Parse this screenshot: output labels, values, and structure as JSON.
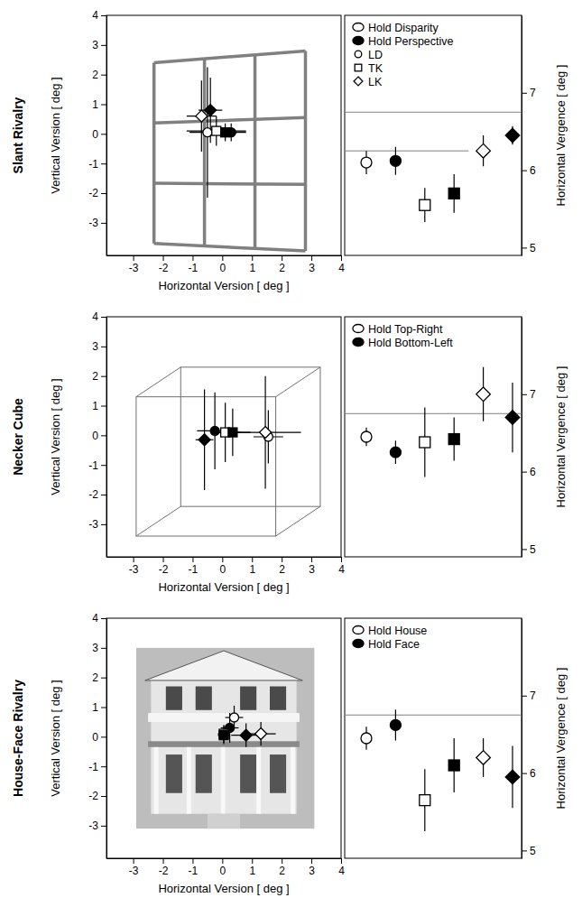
{
  "chart_data": [
    {
      "type": "scatter",
      "title": "Slant Rivalry",
      "xlabel": "Horizontal Version [ deg ]",
      "ylabel": "Vertical Version [ deg ]",
      "xlim": [
        -3.9,
        4
      ],
      "ylim": [
        -4.1,
        4
      ],
      "xticks": [
        -3,
        -2,
        -1,
        0,
        1,
        2,
        3,
        4
      ],
      "yticks": [
        -3,
        -2,
        -1,
        0,
        1,
        2,
        3,
        4
      ],
      "series": [
        {
          "x": [
            -0.5,
            0.3,
            -0.2,
            0.1,
            -0.7,
            -0.4
          ],
          "y": [
            0.05,
            0.05,
            0.1,
            0.05,
            0.6,
            0.8
          ],
          "x_errors": [
            0.6,
            0.5,
            1.0,
            0.4,
            0.5,
            0.4
          ],
          "y_errors": [
            2.2,
            0.3,
            0.5,
            0.3,
            1.2,
            1.1
          ],
          "colors": [
            "#ffffff",
            "#000000",
            "#ffffff",
            "#000000",
            "#ffffff",
            "#000000"
          ],
          "markers": [
            "circle",
            "circle",
            "square",
            "square",
            "diamond",
            "diamond"
          ]
        }
      ]
    },
    {
      "type": "dot",
      "ylabel": "Horizontal Vergence [ deg ]",
      "categories": [
        null,
        null,
        null,
        null,
        null,
        null
      ],
      "ylim": [
        4.9,
        8
      ],
      "yticks": [
        5,
        6,
        7
      ],
      "tick_labels": "y",
      "legend": "top-left",
      "legend_entries": [
        {
          "name": "Hold Disparity",
          "color": "#ffffff",
          "marker": "ellipse"
        },
        {
          "name": "Hold Perspective",
          "color": "#000000",
          "marker": "ellipse"
        },
        {
          "name": "LD",
          "color": "#ffffff",
          "marker": "circle"
        },
        {
          "name": "TK",
          "color": "#ffffff",
          "marker": "square"
        },
        {
          "name": "LK",
          "color": "#ffffff",
          "marker": "diamond"
        }
      ],
      "reference_lines": [
        {
          "y": 6.75
        },
        {
          "y": 6.25,
          "x_end": 3.5
        }
      ],
      "series": [
        {
          "values": [
            6.1,
            6.12,
            5.55,
            5.7,
            6.25,
            6.45
          ],
          "errors": [
            0.15,
            0.18,
            0.22,
            0.25,
            0.2,
            0.12
          ],
          "colors": [
            "#ffffff",
            "#000000",
            "#ffffff",
            "#000000",
            "#ffffff",
            "#000000"
          ],
          "markers": [
            "circle",
            "circle",
            "square",
            "square",
            "diamond",
            "diamond"
          ]
        }
      ]
    },
    {
      "type": "scatter",
      "title": "Necker Cube",
      "xlabel": "Horizontal Version [ deg ]",
      "ylabel": "Vertical Version [ deg ]",
      "xlim": [
        -3.9,
        4
      ],
      "ylim": [
        -4.1,
        4
      ],
      "xticks": [
        -3,
        -2,
        -1,
        0,
        1,
        2,
        3,
        4
      ],
      "yticks": [
        -3,
        -2,
        -1,
        0,
        1,
        2,
        3,
        4
      ],
      "series": [
        {
          "x": [
            1.55,
            -0.25,
            0.1,
            0.35,
            1.45,
            -0.6
          ],
          "y": [
            -0.05,
            0.15,
            0.1,
            0.1,
            0.1,
            -0.15
          ],
          "x_errors": [
            0.5,
            0.6,
            0.5,
            0.6,
            1.2,
            0.3
          ],
          "y_errors": [
            0.9,
            1.3,
            1.0,
            0.8,
            1.9,
            1.7
          ],
          "colors": [
            "#ffffff",
            "#000000",
            "#ffffff",
            "#000000",
            "#ffffff",
            "#000000"
          ],
          "markers": [
            "circle",
            "circle",
            "square",
            "square",
            "diamond",
            "diamond"
          ]
        }
      ]
    },
    {
      "type": "dot",
      "ylabel": "Horizontal Vergence [ deg ]",
      "categories": [
        null,
        null,
        null,
        null,
        null,
        null
      ],
      "ylim": [
        4.9,
        8
      ],
      "yticks": [
        5,
        6,
        7
      ],
      "tick_labels": "y",
      "legend": "top-left",
      "legend_entries": [
        {
          "name": "Hold Top-Right",
          "color": "#ffffff",
          "marker": "ellipse"
        },
        {
          "name": "Hold Bottom-Left",
          "color": "#000000",
          "marker": "ellipse"
        }
      ],
      "reference_lines": [
        {
          "y": 6.75
        }
      ],
      "series": [
        {
          "values": [
            6.45,
            6.25,
            6.38,
            6.42,
            7.0,
            6.7
          ],
          "errors": [
            0.12,
            0.15,
            0.45,
            0.28,
            0.35,
            0.45
          ],
          "colors": [
            "#ffffff",
            "#000000",
            "#ffffff",
            "#000000",
            "#ffffff",
            "#000000"
          ],
          "markers": [
            "circle",
            "circle",
            "square",
            "square",
            "diamond",
            "diamond"
          ]
        }
      ]
    },
    {
      "type": "scatter",
      "title": "House-Face Rivalry",
      "xlabel": "Horizontal Version [ deg ]",
      "ylabel": "Vertical Version [ deg ]",
      "xlim": [
        -3.9,
        4
      ],
      "ylim": [
        -4.1,
        4
      ],
      "xticks": [
        -3,
        -2,
        -1,
        0,
        1,
        2,
        3,
        4
      ],
      "yticks": [
        -3,
        -2,
        -1,
        0,
        1,
        2,
        3,
        4
      ],
      "series": [
        {
          "x": [
            0.4,
            0.25,
            0.05,
            0.05,
            1.3,
            0.8
          ],
          "y": [
            0.65,
            0.3,
            0.1,
            0.05,
            0.1,
            0.05
          ],
          "x_errors": [
            0.3,
            0.3,
            0.2,
            0.2,
            0.5,
            0.5
          ],
          "y_errors": [
            0.4,
            0.5,
            0.3,
            0.3,
            0.4,
            0.4
          ],
          "colors": [
            "#ffffff",
            "#000000",
            "#ffffff",
            "#000000",
            "#ffffff",
            "#000000"
          ],
          "markers": [
            "circle",
            "circle",
            "square",
            "square",
            "diamond",
            "diamond"
          ]
        }
      ]
    },
    {
      "type": "dot",
      "ylabel": "Horizontal Vergence [ deg ]",
      "categories": [
        null,
        null,
        null,
        null,
        null,
        null
      ],
      "ylim": [
        4.9,
        8
      ],
      "yticks": [
        5,
        6,
        7
      ],
      "tick_labels": "y",
      "legend": "top-left",
      "legend_entries": [
        {
          "name": "Hold House",
          "color": "#ffffff",
          "marker": "ellipse"
        },
        {
          "name": "Hold Face",
          "color": "#000000",
          "marker": "ellipse"
        }
      ],
      "reference_lines": [
        {
          "y": 6.75
        }
      ],
      "series": [
        {
          "values": [
            6.45,
            6.62,
            5.65,
            6.1,
            6.2,
            5.95
          ],
          "errors": [
            0.15,
            0.2,
            0.4,
            0.35,
            0.25,
            0.4
          ],
          "colors": [
            "#ffffff",
            "#000000",
            "#ffffff",
            "#000000",
            "#ffffff",
            "#000000"
          ],
          "markers": [
            "circle",
            "circle",
            "square",
            "square",
            "diamond",
            "diamond"
          ]
        }
      ]
    }
  ]
}
